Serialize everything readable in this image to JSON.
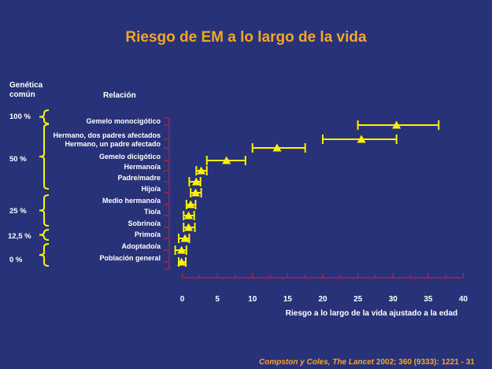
{
  "title": "Riesgo de EM a lo largo de la vida",
  "headers": {
    "genetics_line1": "Genética",
    "genetics_line2": "común",
    "relation": "Relación"
  },
  "genetic_groups": [
    "100 %",
    "50 %",
    "25 %",
    "12,5 %",
    "0 %"
  ],
  "citation": {
    "authors": "Compston y Coles, The Lancet",
    "rest": " 2002; 360 (9333): 1221 - 31"
  },
  "colors": {
    "background": "#283278",
    "title": "#F5A623",
    "axis": "#C0223A",
    "marker": "#FFF200",
    "bracket": "#FFF200",
    "text": "#FFFFFF"
  },
  "chart_data": {
    "type": "scatter",
    "xlabel": "Riesgo a lo largo de la vida ajustado a la edad",
    "xlim": [
      0,
      40
    ],
    "xticks": [
      0,
      5,
      10,
      15,
      20,
      25,
      30,
      35,
      40
    ],
    "categories": [
      "Gemelo monocigótico",
      "Hermano, dos padres afectados",
      "Hermano, un padre afectado",
      "Gemelo dicigótico",
      "Hermano/a",
      "Padre/madre",
      "Hijo/a",
      "Medio hermano/a",
      "Tío/a",
      "Sobrino/a",
      "Primo/a",
      "Adoptado/a",
      "Población general"
    ],
    "values": [
      30.5,
      25.5,
      13.5,
      6.3,
      2.7,
      2.0,
      1.9,
      1.2,
      0.9,
      0.9,
      0.4,
      -0.1,
      -0.1
    ],
    "error_low": [
      25.0,
      20.0,
      10.0,
      3.5,
      2.0,
      1.0,
      1.2,
      0.6,
      0.2,
      0.2,
      -0.5,
      -1.0,
      -0.5
    ],
    "error_high": [
      36.5,
      30.5,
      17.5,
      9.0,
      3.5,
      2.6,
      2.7,
      1.9,
      1.7,
      1.8,
      1.0,
      0.6,
      0.5
    ]
  }
}
